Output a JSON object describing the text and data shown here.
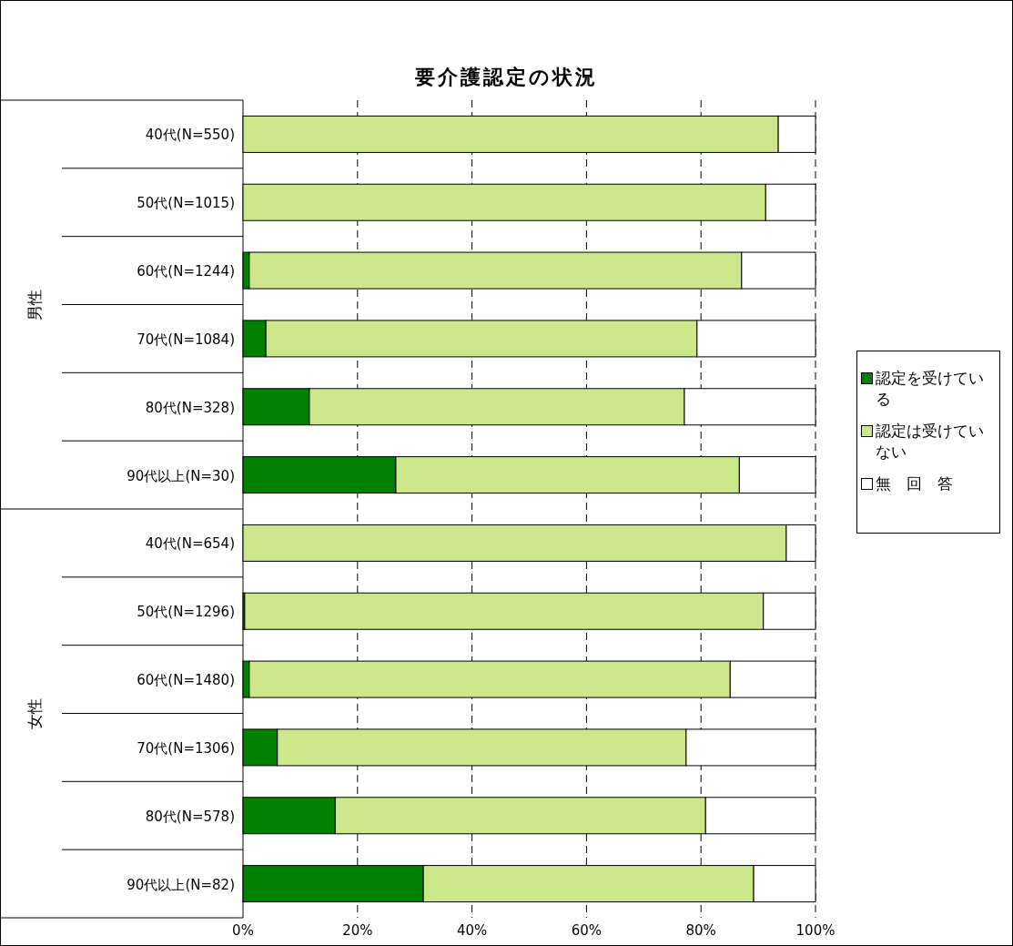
{
  "chart_data": {
    "type": "bar",
    "orientation": "horizontal",
    "stacked": true,
    "title": "要介護認定の状況",
    "categories": [
      "40代(N=550)",
      "50代(N=1015)",
      "60代(N=1244)",
      "70代(N=1084)",
      "80代(N=328)",
      "90代以上(N=30)",
      "40代(N=654)",
      "50代(N=1296)",
      "60代(N=1480)",
      "70代(N=1306)",
      "80代(N=578)",
      "90代以上(N=82)"
    ],
    "annotations": [
      "男性",
      "女性"
    ],
    "series": [
      {
        "name": "認定を受けている",
        "color": "#008000",
        "values": [
          0,
          0,
          1.1,
          4.0,
          11.6,
          26.7,
          0,
          0.3,
          1.1,
          6.0,
          16.1,
          31.5
        ]
      },
      {
        "name": "認定は受けていない",
        "color": "#cce68a",
        "values": [
          93.5,
          91.3,
          86.0,
          75.3,
          65.5,
          60.0,
          94.9,
          90.6,
          84.0,
          71.4,
          64.7,
          57.7
        ]
      },
      {
        "name": "無　回　答",
        "color": "#ffffff",
        "values": [
          6.5,
          8.7,
          12.9,
          20.7,
          22.9,
          13.3,
          5.1,
          9.1,
          14.9,
          22.6,
          19.2,
          10.8
        ]
      }
    ],
    "xlim": [
      0,
      100
    ],
    "xticks": [
      {
        "value": 0,
        "label": "0%"
      },
      {
        "value": 20,
        "label": "20%"
      },
      {
        "value": 40,
        "label": "40%"
      },
      {
        "value": 60,
        "label": "60%"
      },
      {
        "value": 80,
        "label": "80%"
      },
      {
        "value": 100,
        "label": "100%"
      }
    ],
    "grid": "x",
    "legend": "right"
  }
}
